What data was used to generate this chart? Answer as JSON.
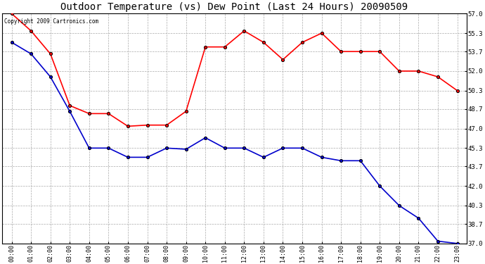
{
  "title": "Outdoor Temperature (vs) Dew Point (Last 24 Hours) 20090509",
  "copyright_text": "Copyright 2009 Cartronics.com",
  "x_labels": [
    "00:00",
    "01:00",
    "02:00",
    "03:00",
    "04:00",
    "05:00",
    "06:00",
    "07:00",
    "08:00",
    "09:00",
    "10:00",
    "11:00",
    "12:00",
    "13:00",
    "14:00",
    "15:00",
    "16:00",
    "17:00",
    "18:00",
    "19:00",
    "20:00",
    "21:00",
    "22:00",
    "23:00"
  ],
  "temp_data": [
    57.0,
    55.5,
    53.5,
    49.0,
    48.3,
    48.3,
    47.2,
    47.3,
    47.3,
    48.5,
    54.1,
    54.1,
    55.5,
    54.5,
    53.0,
    54.5,
    55.3,
    53.7,
    53.7,
    53.7,
    52.0,
    52.0,
    51.5,
    50.3
  ],
  "dew_data": [
    54.5,
    53.5,
    51.5,
    48.5,
    45.3,
    45.3,
    44.5,
    44.5,
    45.3,
    45.2,
    46.2,
    45.3,
    45.3,
    44.5,
    45.3,
    45.3,
    44.5,
    44.2,
    44.2,
    42.0,
    40.3,
    39.2,
    37.2,
    37.0
  ],
  "temp_color": "#ff0000",
  "dew_color": "#0000cc",
  "bg_color": "#ffffff",
  "plot_bg_color": "#ffffff",
  "grid_color": "#aaaaaa",
  "y_ticks": [
    37.0,
    38.7,
    40.3,
    42.0,
    43.7,
    45.3,
    47.0,
    48.7,
    50.3,
    52.0,
    53.7,
    55.3,
    57.0
  ],
  "ylim": [
    37.0,
    57.0
  ],
  "title_fontsize": 10,
  "marker": "o",
  "marker_size": 3,
  "marker_color": "#000000",
  "line_width": 1.2,
  "fig_width": 6.9,
  "fig_height": 3.75,
  "dpi": 100
}
